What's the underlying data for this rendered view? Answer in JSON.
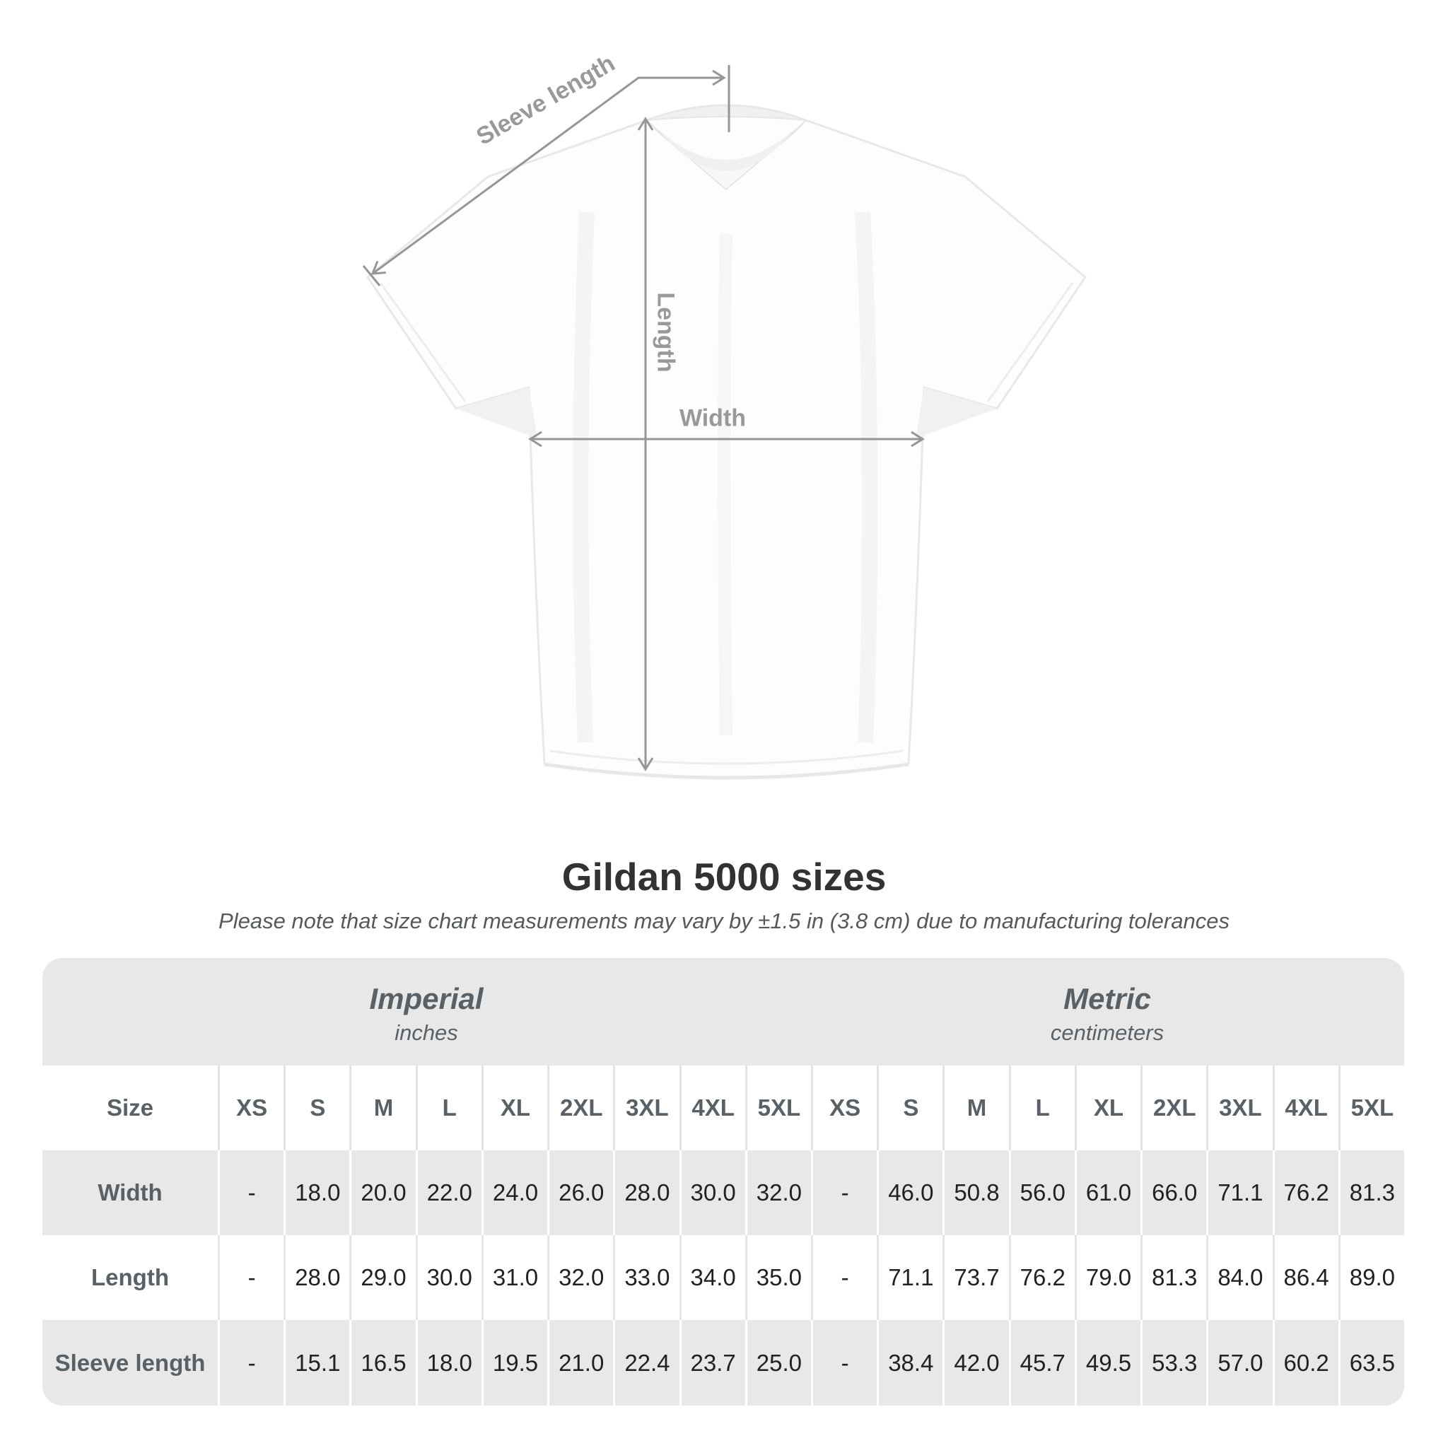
{
  "illustration": {
    "labels": {
      "sleeve_length": "Sleeve length",
      "length": "Length",
      "width": "Width"
    }
  },
  "title": "Gildan 5000 sizes",
  "subtitle": "Please note that size chart measurements may vary by ±1.5 in (3.8 cm) due to manufacturing tolerances",
  "table": {
    "size_label": "Size",
    "groups": [
      {
        "name": "Imperial",
        "unit": "inches"
      },
      {
        "name": "Metric",
        "unit": "centimeters"
      }
    ],
    "columns": [
      "XS",
      "S",
      "M",
      "L",
      "XL",
      "2XL",
      "3XL",
      "4XL",
      "5XL",
      "XS",
      "S",
      "M",
      "L",
      "XL",
      "2XL",
      "3XL",
      "4XL",
      "5XL"
    ],
    "rows": [
      {
        "label": "Width",
        "values": [
          "-",
          "18.0",
          "20.0",
          "22.0",
          "24.0",
          "26.0",
          "28.0",
          "30.0",
          "32.0",
          "-",
          "46.0",
          "50.8",
          "56.0",
          "61.0",
          "66.0",
          "71.1",
          "76.2",
          "81.3"
        ]
      },
      {
        "label": "Length",
        "values": [
          "-",
          "28.0",
          "29.0",
          "30.0",
          "31.0",
          "32.0",
          "33.0",
          "34.0",
          "35.0",
          "-",
          "71.1",
          "73.7",
          "76.2",
          "79.0",
          "81.3",
          "84.0",
          "86.4",
          "89.0"
        ]
      },
      {
        "label": "Sleeve length",
        "values": [
          "-",
          "15.1",
          "16.5",
          "18.0",
          "19.5",
          "21.0",
          "22.4",
          "23.7",
          "25.0",
          "-",
          "38.4",
          "42.0",
          "45.7",
          "49.5",
          "53.3",
          "57.0",
          "60.2",
          "63.5"
        ]
      }
    ]
  },
  "colors": {
    "table_band_bg": "#e8e8e8",
    "header_text": "#5a6166",
    "value_text": "#212121",
    "measure_line": "#969696",
    "measure_label": "#97999b",
    "title_text": "#323232",
    "subtitle_text": "#55595c",
    "shirt_outline": "#e8e8e8"
  }
}
